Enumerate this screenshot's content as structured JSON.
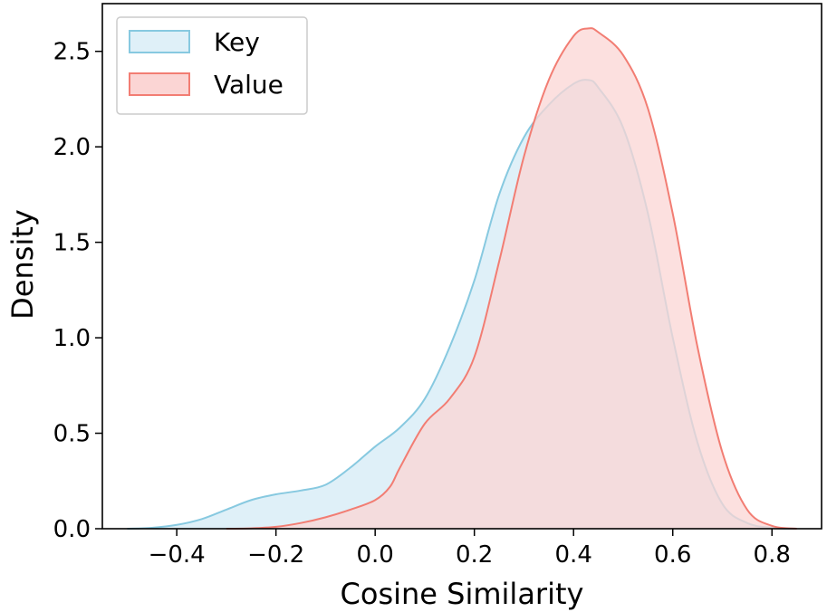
{
  "chart_data": {
    "type": "area",
    "title": "",
    "xlabel": "Cosine Similarity",
    "ylabel": "Density",
    "xlim": [
      -0.55,
      0.9
    ],
    "ylim": [
      0,
      2.75
    ],
    "xticks": [
      -0.4,
      -0.2,
      0.0,
      0.2,
      0.4,
      0.6,
      0.8
    ],
    "xtick_labels": [
      "−0.4",
      "−0.2",
      "0.0",
      "0.2",
      "0.4",
      "0.6",
      "0.8"
    ],
    "yticks": [
      0.0,
      0.5,
      1.0,
      1.5,
      2.0,
      2.5
    ],
    "ytick_labels": [
      "0.0",
      "0.5",
      "1.0",
      "1.5",
      "2.0",
      "2.5"
    ],
    "grid": false,
    "legend_position": "top-left",
    "series": [
      {
        "name": "Key",
        "fill_color": "#dff0f8",
        "line_color": "#87c9e0",
        "x": [
          -0.5,
          -0.45,
          -0.4,
          -0.35,
          -0.3,
          -0.25,
          -0.2,
          -0.15,
          -0.1,
          -0.05,
          0.0,
          0.05,
          0.1,
          0.15,
          0.2,
          0.25,
          0.3,
          0.35,
          0.4,
          0.43,
          0.45,
          0.5,
          0.55,
          0.6,
          0.65,
          0.7,
          0.75,
          0.8,
          0.85
        ],
        "y": [
          0.0,
          0.005,
          0.02,
          0.05,
          0.1,
          0.15,
          0.18,
          0.2,
          0.23,
          0.32,
          0.43,
          0.53,
          0.68,
          0.95,
          1.3,
          1.75,
          2.05,
          2.22,
          2.33,
          2.35,
          2.31,
          2.1,
          1.65,
          1.0,
          0.45,
          0.13,
          0.03,
          0.005,
          0.0
        ]
      },
      {
        "name": "Value",
        "fill_color": "#fbd5d4",
        "line_color": "#f27d73",
        "x": [
          -0.3,
          -0.25,
          -0.2,
          -0.15,
          -0.1,
          -0.05,
          0.0,
          0.03,
          0.05,
          0.1,
          0.15,
          0.2,
          0.25,
          0.3,
          0.35,
          0.4,
          0.43,
          0.45,
          0.5,
          0.55,
          0.6,
          0.65,
          0.7,
          0.75,
          0.8,
          0.85
        ],
        "y": [
          0.0,
          0.002,
          0.01,
          0.03,
          0.06,
          0.1,
          0.15,
          0.22,
          0.32,
          0.55,
          0.68,
          0.9,
          1.4,
          1.95,
          2.35,
          2.58,
          2.62,
          2.6,
          2.48,
          2.2,
          1.65,
          0.95,
          0.4,
          0.1,
          0.015,
          0.0
        ]
      }
    ]
  }
}
